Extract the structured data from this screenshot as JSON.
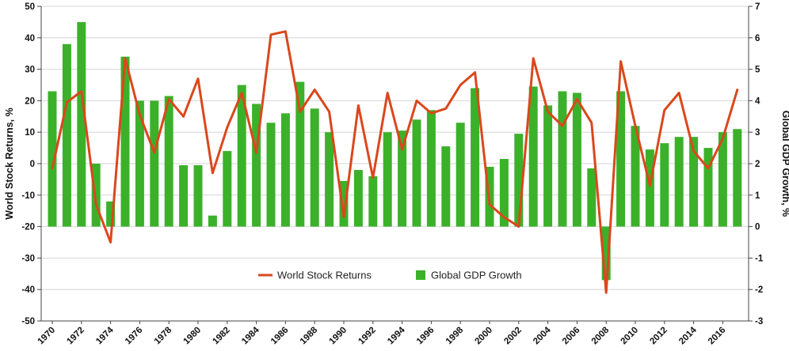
{
  "chart_data": {
    "type": "bar",
    "title": "",
    "ylabel": "World Stock Returns, %",
    "y2label": "Global GDP Growth, %",
    "ylim": [
      -50,
      50
    ],
    "y2lim": [
      -3,
      7
    ],
    "yticks": [
      50,
      40,
      30,
      20,
      10,
      0,
      -10,
      -20,
      -30,
      -40,
      -50
    ],
    "y2ticks": [
      7,
      6,
      5,
      4,
      3,
      2,
      1,
      0,
      -1,
      -2,
      -3
    ],
    "years": [
      1970,
      1971,
      1972,
      1973,
      1974,
      1975,
      1976,
      1977,
      1978,
      1979,
      1980,
      1981,
      1982,
      1983,
      1984,
      1985,
      1986,
      1987,
      1988,
      1989,
      1990,
      1991,
      1992,
      1993,
      1994,
      1995,
      1996,
      1997,
      1998,
      1999,
      2000,
      2001,
      2002,
      2003,
      2004,
      2005,
      2006,
      2007,
      2008,
      2009,
      2010,
      2011,
      2012,
      2013,
      2014,
      2015,
      2016,
      2017
    ],
    "xtick_labels": [
      "1970",
      "1972",
      "1974",
      "1976",
      "1978",
      "1980",
      "1982",
      "1984",
      "1986",
      "1988",
      "1990",
      "1992",
      "1994",
      "1996",
      "1998",
      "2000",
      "2002",
      "2004",
      "2006",
      "2008",
      "2010",
      "2012",
      "2014",
      "2016"
    ],
    "legend_position": "bottom-center",
    "series": [
      {
        "name": "Global GDP Growth",
        "type": "bar",
        "axis": "right",
        "color": "#3bb12a",
        "values": [
          4.3,
          5.8,
          6.5,
          2.0,
          0.8,
          5.4,
          4.0,
          4.0,
          4.15,
          1.95,
          1.95,
          0.35,
          2.4,
          4.5,
          3.9,
          3.3,
          3.6,
          4.6,
          3.75,
          3.0,
          1.45,
          1.8,
          1.6,
          3.0,
          3.05,
          3.4,
          3.7,
          2.55,
          3.3,
          4.4,
          1.9,
          2.15,
          2.95,
          4.45,
          3.85,
          4.3,
          4.25,
          1.85,
          -1.7,
          4.3,
          3.2,
          2.45,
          2.65,
          2.85,
          2.85,
          2.5,
          3.0,
          3.1
        ]
      },
      {
        "name": "World Stock Returns",
        "type": "line",
        "axis": "left",
        "color": "#d9481c",
        "values": [
          -1.5,
          19.5,
          23,
          -13,
          -25,
          33.5,
          15.5,
          3.5,
          20.5,
          15,
          27,
          -3,
          11.5,
          22.5,
          3.5,
          41,
          42,
          16.5,
          23.5,
          16.5,
          -17,
          18.5,
          -4.5,
          22.5,
          4.5,
          20,
          16,
          17.5,
          25,
          29,
          -13,
          -17,
          -20,
          33.5,
          16.5,
          12,
          20.5,
          13,
          -41,
          32.5,
          12,
          -7,
          17,
          22.5,
          4,
          -1.5,
          8,
          23.5
        ]
      }
    ]
  }
}
